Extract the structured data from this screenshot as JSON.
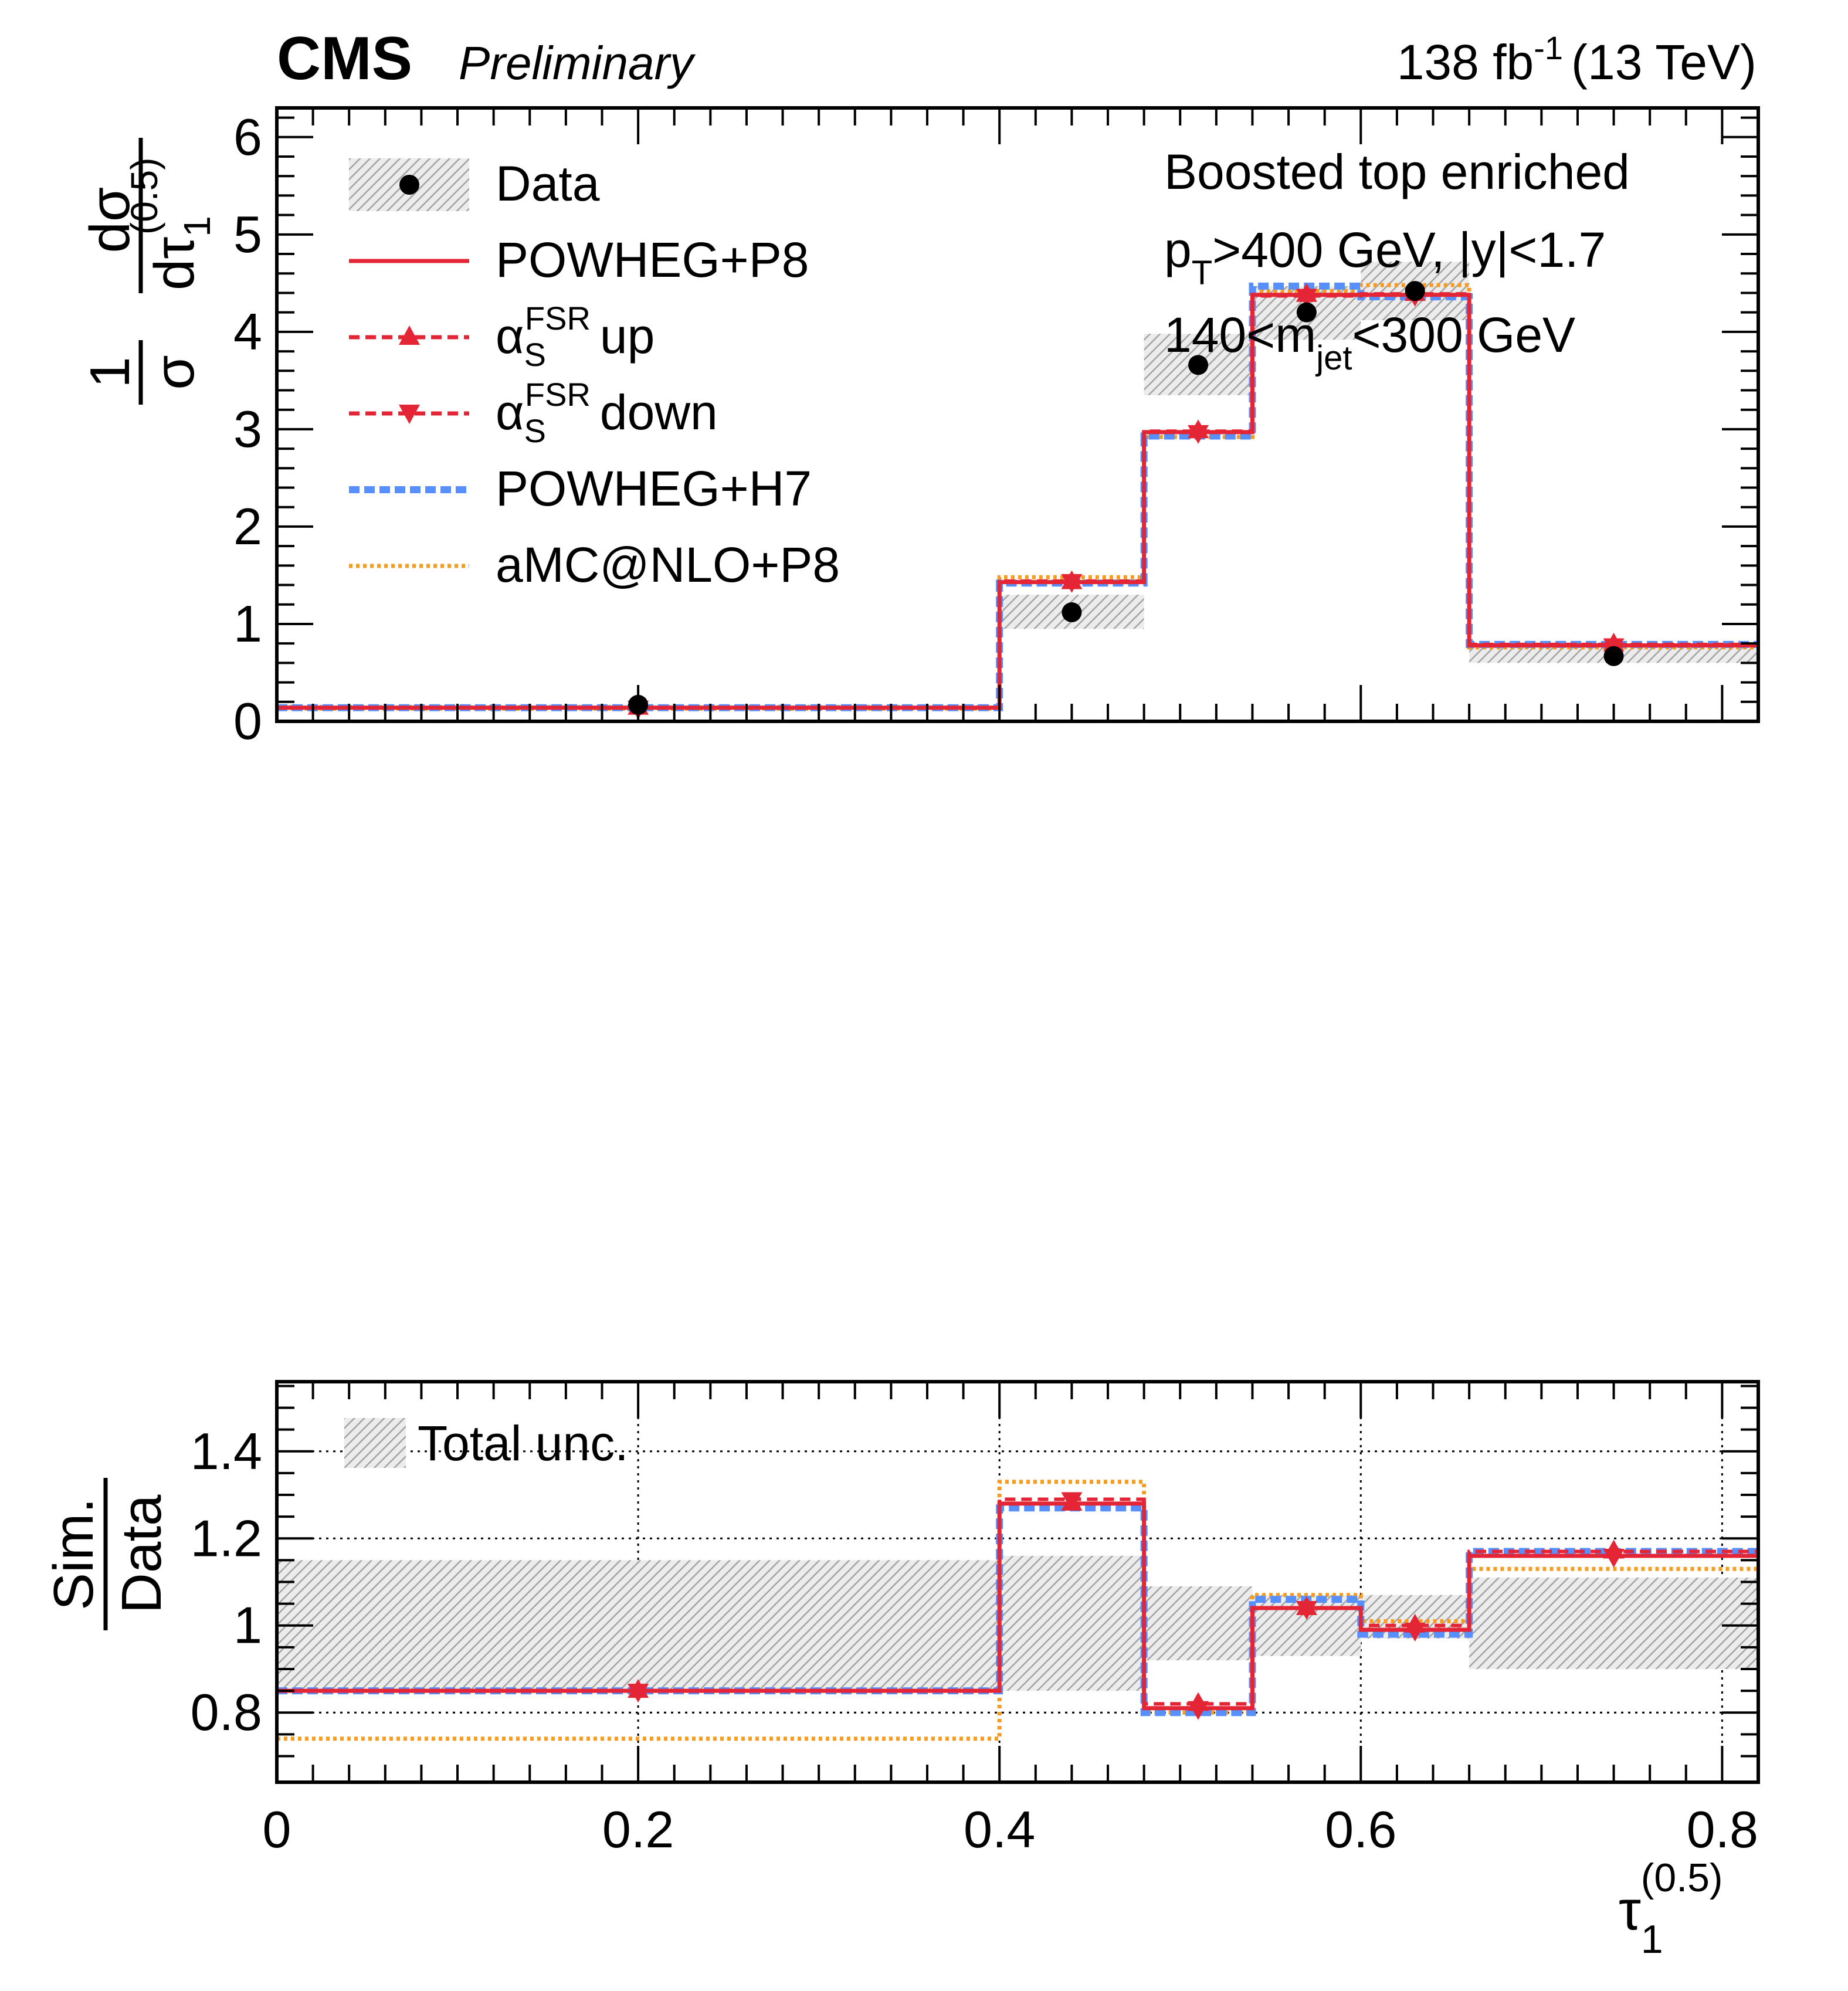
{
  "header": {
    "experiment": "CMS",
    "status": "Preliminary",
    "lumi_value": "138 fb",
    "lumi_exp": "-1",
    "energy": "(13 TeV)"
  },
  "selection": {
    "line1": "Boosted top enriched",
    "line2_p": "p",
    "line2_sub": "T",
    "line2_rest": ">400 GeV, |y|<1.7",
    "line3_pre": "140<m",
    "line3_sub": "jet",
    "line3_rest": "<300 GeV"
  },
  "legend": {
    "data": "Data",
    "powheg_p8": "POWHEG+P8",
    "alpha": "α",
    "alpha_sub": "S",
    "alpha_sup": "FSR",
    "up": "up",
    "down": "down",
    "powheg_h7": "POWHEG+H7",
    "amc": "aMC@NLO+P8",
    "total_unc": "Total unc."
  },
  "axes": {
    "top_ylabel_one": "1",
    "top_ylabel_sigma": "σ",
    "top_ylabel_num": "dσ",
    "top_ylabel_den": "dτ",
    "top_ylabel_den_sub": "1",
    "top_ylabel_den_sup": "(0.5)",
    "ratio_ylabel_num": "Sim.",
    "ratio_ylabel_den": "Data",
    "xlabel": "τ",
    "xlabel_sub": "1",
    "xlabel_sup": "(0.5)"
  },
  "colors": {
    "powheg_p8": "#e42536",
    "alpha_up": "#e42536",
    "alpha_down": "#e42536",
    "powheg_h7": "#5790fc",
    "amc": "#f89c20",
    "data": "#000000",
    "uncertainty": "#9e9e9e"
  },
  "chart_data": [
    {
      "type": "line",
      "panel": "distribution",
      "xlabel": "τ1(0.5)",
      "ylabel": "1/σ dσ/dτ1(0.5)",
      "xlim": [
        0,
        0.82
      ],
      "ylim": [
        0,
        6.3
      ],
      "xticks": [
        0,
        0.2,
        0.4,
        0.6,
        0.8
      ],
      "xtick_labels": [
        "0",
        "0.2",
        "0.4",
        "0.6",
        "0.8"
      ],
      "yticks": [
        0,
        1,
        2,
        3,
        4,
        5,
        6
      ],
      "ytick_labels": [
        "0",
        "1",
        "2",
        "3",
        "4",
        "5",
        "6"
      ],
      "bin_edges": [
        0,
        0.4,
        0.48,
        0.54,
        0.6,
        0.66,
        0.82
      ],
      "data": {
        "x": [
          0.2,
          0.44,
          0.51,
          0.57,
          0.63,
          0.74
        ],
        "y": [
          0.17,
          1.12,
          3.66,
          4.2,
          4.42,
          0.67
        ],
        "unc_low": [
          0.12,
          0.95,
          3.35,
          3.92,
          4.12,
          0.6
        ],
        "unc_high": [
          0.17,
          1.3,
          3.98,
          4.47,
          4.72,
          0.78
        ]
      },
      "series": [
        {
          "name": "POWHEG+P8",
          "values": [
            0.14,
            1.43,
            2.97,
            4.38,
            4.38,
            0.78
          ]
        },
        {
          "name": "αS FSR up",
          "values": [
            0.14,
            1.43,
            2.98,
            4.38,
            4.39,
            0.79
          ]
        },
        {
          "name": "αS FSR down",
          "values": [
            0.14,
            1.44,
            2.97,
            4.37,
            4.38,
            0.78
          ]
        },
        {
          "name": "POWHEG+H7",
          "values": [
            0.14,
            1.42,
            2.93,
            4.47,
            4.36,
            0.79
          ]
        },
        {
          "name": "aMC@NLO+P8",
          "values": [
            0.13,
            1.48,
            2.92,
            4.42,
            4.48,
            0.76
          ]
        }
      ],
      "legend_position": "top-left"
    },
    {
      "type": "line",
      "panel": "ratio",
      "ylabel": "Sim./Data",
      "xlim": [
        0,
        0.82
      ],
      "ylim": [
        0.64,
        1.56
      ],
      "yticks": [
        0.8,
        1,
        1.2,
        1.4
      ],
      "ytick_labels": [
        "0.8",
        "1",
        "1.2",
        "1.4"
      ],
      "grid": true,
      "bin_edges": [
        0,
        0.4,
        0.48,
        0.54,
        0.6,
        0.66,
        0.82
      ],
      "total_unc": {
        "low": [
          0.85,
          0.85,
          0.92,
          0.93,
          0.97,
          0.9
        ],
        "high": [
          1.15,
          1.16,
          1.09,
          1.07,
          1.07,
          1.11
        ]
      },
      "series": [
        {
          "name": "POWHEG+P8",
          "values": [
            0.85,
            1.28,
            0.81,
            1.04,
            0.99,
            1.16
          ]
        },
        {
          "name": "αS FSR up",
          "values": [
            0.85,
            1.28,
            0.82,
            1.04,
            1.0,
            1.17
          ]
        },
        {
          "name": "αS FSR down",
          "values": [
            0.85,
            1.29,
            0.81,
            1.04,
            0.99,
            1.16
          ]
        },
        {
          "name": "POWHEG+H7",
          "values": [
            0.85,
            1.27,
            0.8,
            1.06,
            0.98,
            1.17
          ]
        },
        {
          "name": "aMC@NLO+P8",
          "values": [
            0.74,
            1.33,
            0.8,
            1.07,
            1.01,
            1.13
          ]
        }
      ],
      "legend_position": "top-left"
    }
  ]
}
